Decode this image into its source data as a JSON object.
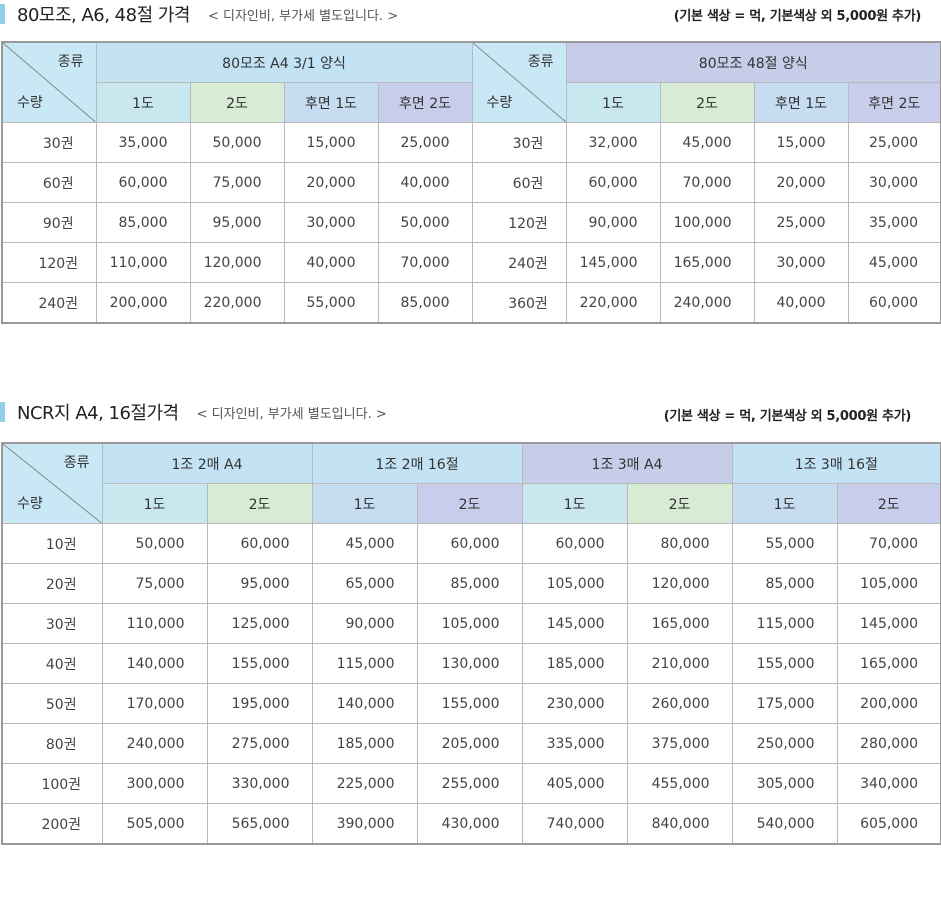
{
  "section1": {
    "title": "80모조, A6, 48절 가격",
    "sub": "< 디자인비, 부가세 별도입니다. >",
    "note": "(기본 색상 = 먹, 기본색상 외 5,000원 추가)",
    "corner_top": "종류",
    "corner_bottom": "수량",
    "groups": [
      "80모조 A4 3/1 양식",
      "80모조 48절 양식"
    ],
    "cols": [
      "1도",
      "2도",
      "후면 1도",
      "후면 2도"
    ],
    "left_rows": [
      [
        "30권",
        "35,000",
        "50,000",
        "15,000",
        "25,000"
      ],
      [
        "60권",
        "60,000",
        "75,000",
        "20,000",
        "40,000"
      ],
      [
        "90권",
        "85,000",
        "95,000",
        "30,000",
        "50,000"
      ],
      [
        "120권",
        "110,000",
        "120,000",
        "40,000",
        "70,000"
      ],
      [
        "240권",
        "200,000",
        "220,000",
        "55,000",
        "85,000"
      ]
    ],
    "right_rows": [
      [
        "30권",
        "32,000",
        "45,000",
        "15,000",
        "25,000"
      ],
      [
        "60권",
        "60,000",
        "70,000",
        "20,000",
        "30,000"
      ],
      [
        "120권",
        "90,000",
        "100,000",
        "25,000",
        "35,000"
      ],
      [
        "240권",
        "145,000",
        "165,000",
        "30,000",
        "45,000"
      ],
      [
        "360권",
        "220,000",
        "240,000",
        "40,000",
        "60,000"
      ]
    ]
  },
  "section2": {
    "title": "NCR지 A4, 16절가격",
    "sub": "< 디자인비, 부가세 별도입니다. >",
    "note": "(기본 색상 = 먹, 기본색상 외 5,000원 추가)",
    "corner_top": "종류",
    "corner_bottom": "수량",
    "groups": [
      "1조 2매 A4",
      "1조 2매 16절",
      "1조 3매 A4",
      "1조 3매 16절"
    ],
    "cols": [
      "1도",
      "2도"
    ],
    "rows": [
      [
        "10권",
        "50,000",
        "60,000",
        "45,000",
        "60,000",
        "60,000",
        "80,000",
        "55,000",
        "70,000"
      ],
      [
        "20권",
        "75,000",
        "95,000",
        "65,000",
        "85,000",
        "105,000",
        "120,000",
        "85,000",
        "105,000"
      ],
      [
        "30권",
        "110,000",
        "125,000",
        "90,000",
        "105,000",
        "145,000",
        "165,000",
        "115,000",
        "145,000"
      ],
      [
        "40권",
        "140,000",
        "155,000",
        "115,000",
        "130,000",
        "185,000",
        "210,000",
        "155,000",
        "165,000"
      ],
      [
        "50권",
        "170,000",
        "195,000",
        "140,000",
        "155,000",
        "230,000",
        "260,000",
        "175,000",
        "200,000"
      ],
      [
        "80권",
        "240,000",
        "275,000",
        "185,000",
        "205,000",
        "335,000",
        "375,000",
        "250,000",
        "280,000"
      ],
      [
        "100권",
        "300,000",
        "330,000",
        "225,000",
        "255,000",
        "405,000",
        "455,000",
        "305,000",
        "340,000"
      ],
      [
        "200권",
        "505,000",
        "565,000",
        "390,000",
        "430,000",
        "740,000",
        "840,000",
        "540,000",
        "605,000"
      ]
    ]
  },
  "colors": {
    "accent_bar": "#8fd0e8",
    "header_blue": "#c3e3f5",
    "header_lavender": "#c5cde9",
    "col_1do": "#c8e7ee",
    "col_2do": "#d8ebd5",
    "col_hu1": "#c6dcf1",
    "col_hu2": "#c8cdeb"
  }
}
